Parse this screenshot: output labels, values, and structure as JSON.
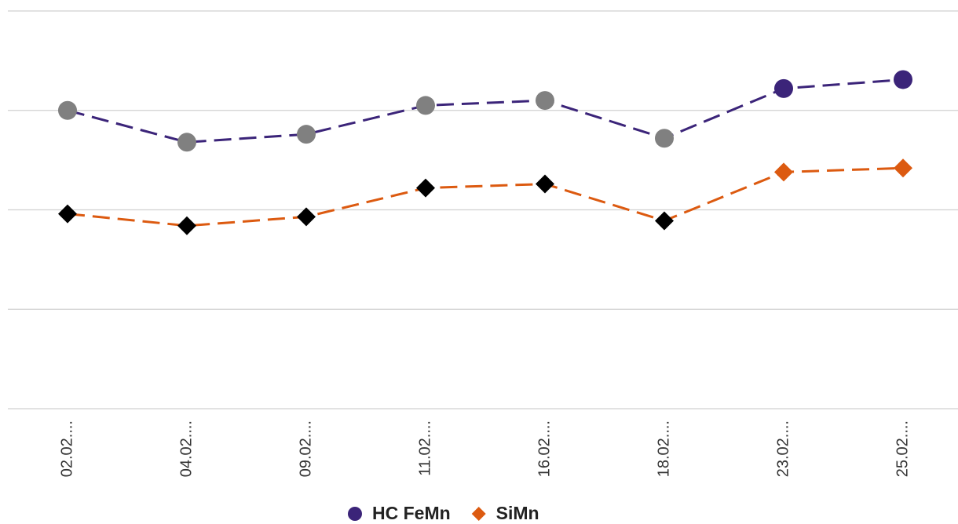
{
  "chart_data": {
    "type": "line",
    "categories": [
      "02.02....",
      "04.02....",
      "09.02....",
      "11.02....",
      "16.02....",
      "18.02....",
      "23.02....",
      "25.02...."
    ],
    "series": [
      {
        "name": "HC FeMn",
        "color": "#3b2479",
        "marker": "circle",
        "values": [
          3.0,
          2.68,
          2.76,
          3.05,
          3.1,
          2.72,
          3.22,
          3.31
        ],
        "point_colors": [
          "#808080",
          "#808080",
          "#808080",
          "#808080",
          "#808080",
          "#808080",
          "#3b2479",
          "#3b2479"
        ]
      },
      {
        "name": "SiMn",
        "color": "#dc5a10",
        "marker": "diamond",
        "values": [
          1.96,
          1.84,
          1.93,
          2.22,
          2.26,
          1.89,
          2.38,
          2.42
        ],
        "point_colors": [
          "#000000",
          "#000000",
          "#000000",
          "#000000",
          "#000000",
          "#000000",
          "#dc5a10",
          "#dc5a10"
        ]
      }
    ],
    "ylim": [
      0,
      4
    ],
    "yticks": [
      0,
      1,
      2,
      3,
      4
    ],
    "grid": true,
    "legend": "bottom"
  }
}
